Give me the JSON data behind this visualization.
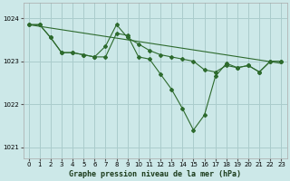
{
  "background_color": "#cce8e8",
  "grid_color": "#aacccc",
  "line_color": "#2d6a2d",
  "title": "Graphe pression niveau de la mer (hPa)",
  "xlim": [
    -0.5,
    23.5
  ],
  "ylim": [
    1020.75,
    1024.35
  ],
  "yticks": [
    1021,
    1022,
    1023,
    1024
  ],
  "xticks": [
    0,
    1,
    2,
    3,
    4,
    5,
    6,
    7,
    8,
    9,
    10,
    11,
    12,
    13,
    14,
    15,
    16,
    17,
    18,
    19,
    20,
    21,
    22,
    23
  ],
  "series": [
    {
      "x": [
        0,
        1,
        2,
        3,
        4,
        5,
        6,
        7,
        8,
        9,
        10,
        11,
        12,
        13,
        14,
        15,
        16,
        17,
        18,
        19,
        20,
        21,
        22,
        23
      ],
      "y": [
        1023.85,
        1023.85,
        1023.55,
        1023.2,
        1023.2,
        1023.15,
        1023.1,
        1023.1,
        1023.65,
        1023.6,
        1023.1,
        1023.05,
        1022.7,
        1022.35,
        1021.9,
        1021.4,
        1021.75,
        1022.65,
        1022.95,
        1022.85,
        1022.9,
        1022.75,
        1023.0,
        1023.0
      ]
    },
    {
      "x": [
        0,
        1,
        2,
        3,
        4,
        5,
        6,
        7,
        8,
        9,
        10,
        11,
        12,
        13,
        14,
        15,
        16,
        17,
        18,
        19,
        20,
        21,
        22,
        23
      ],
      "y": [
        1023.85,
        1023.85,
        1023.55,
        1023.2,
        1023.2,
        1023.15,
        1023.1,
        1023.35,
        1023.85,
        1023.55,
        1023.4,
        1023.25,
        1023.15,
        1023.1,
        1023.05,
        1023.0,
        1022.8,
        1022.75,
        1022.9,
        1022.85,
        1022.9,
        1022.75,
        1023.0,
        1023.0
      ]
    },
    {
      "x": [
        0,
        23
      ],
      "y": [
        1023.85,
        1022.95
      ]
    }
  ]
}
